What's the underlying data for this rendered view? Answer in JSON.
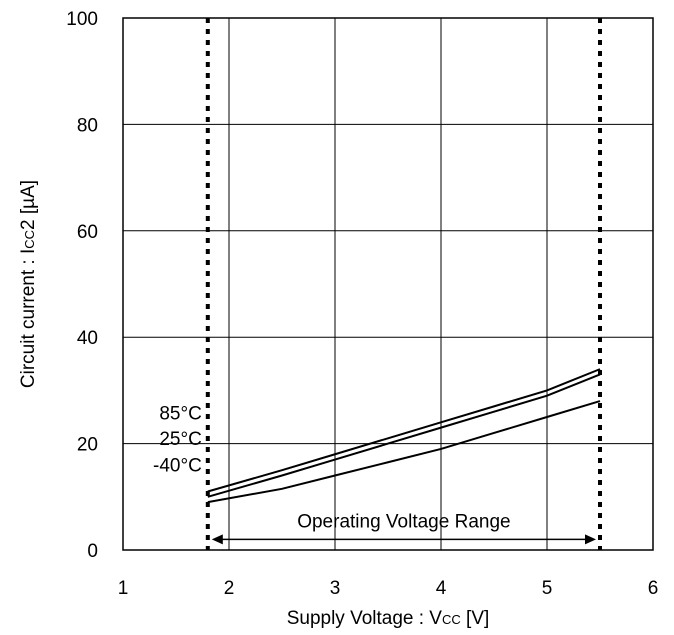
{
  "chart_data": {
    "type": "line",
    "xlabel_main": "Supply Voltage : V",
    "xlabel_sub": "CC",
    "xlabel_unit": " [V]",
    "ylabel_main": "Circuit current : I",
    "ylabel_sub": "CC",
    "ylabel_unit": "2 [µA]",
    "xlim": [
      1,
      6
    ],
    "ylim": [
      0,
      100
    ],
    "xticks": [
      "1",
      "2",
      "3",
      "4",
      "5",
      "6"
    ],
    "yticks": [
      "0",
      "20",
      "40",
      "60",
      "80",
      "100"
    ],
    "grid": true,
    "series": [
      {
        "name": "85°C",
        "x": [
          1.8,
          2.5,
          3.0,
          3.5,
          4.0,
          4.5,
          5.0,
          5.5
        ],
        "values": [
          11.0,
          15.0,
          18.0,
          21.0,
          24.0,
          27.0,
          30.0,
          34.0
        ]
      },
      {
        "name": "25°C",
        "x": [
          1.8,
          2.5,
          3.0,
          3.5,
          4.0,
          4.5,
          5.0,
          5.5
        ],
        "values": [
          10.0,
          14.0,
          17.0,
          20.0,
          23.0,
          26.0,
          29.0,
          33.0
        ]
      },
      {
        "name": "-40°C",
        "x": [
          1.8,
          2.5,
          3.0,
          3.5,
          4.0,
          4.5,
          5.0,
          5.5
        ],
        "values": [
          9.0,
          11.5,
          14.0,
          16.5,
          19.0,
          22.0,
          25.0,
          28.0
        ]
      }
    ],
    "operating_range": {
      "label": "Operating Voltage Range",
      "x_min": 1.8,
      "x_max": 5.5,
      "y": 2
    }
  }
}
